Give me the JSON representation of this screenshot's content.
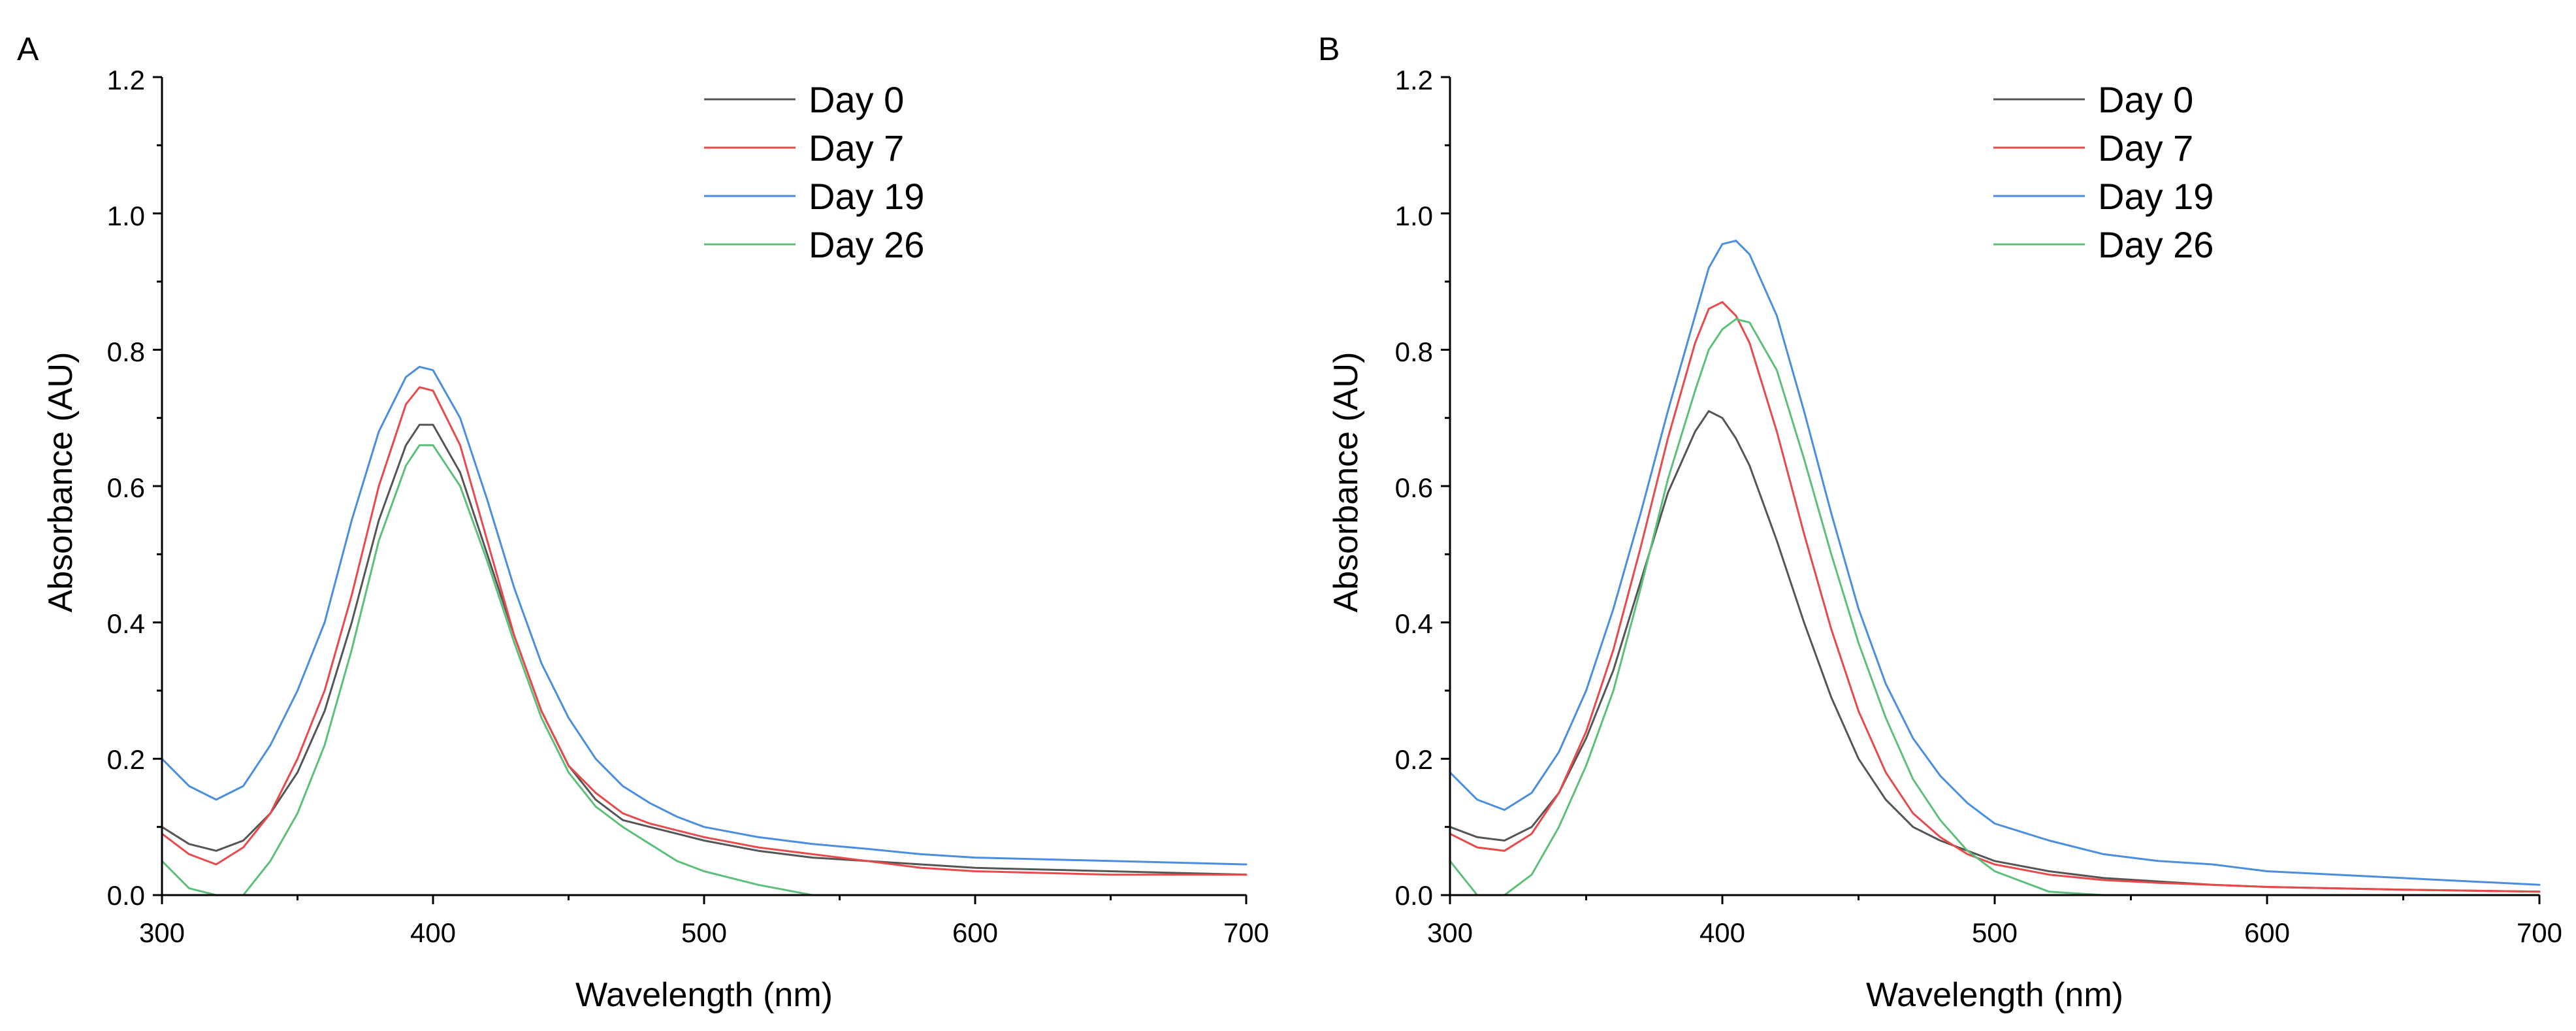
{
  "chart_data": [
    {
      "type": "line",
      "panel_label": "A",
      "xlabel": "Wavelength (nm)",
      "ylabel": "Absorbance (AU)",
      "xlim": [
        300,
        700
      ],
      "ylim": [
        0,
        1.2
      ],
      "xticks": [
        300,
        400,
        500,
        600,
        700
      ],
      "xtick_labels": [
        "300",
        "400",
        "500",
        "600",
        "700"
      ],
      "yticks": [
        0,
        0.2,
        0.4,
        0.6,
        0.8,
        1.0,
        1.2
      ],
      "ytick_labels": [
        "0.0",
        "0.2",
        "0.4",
        "0.6",
        "0.8",
        "1.0",
        "1.2"
      ],
      "grid": false,
      "legend_position": "top-right",
      "x": [
        300,
        310,
        320,
        330,
        340,
        350,
        360,
        370,
        380,
        390,
        395,
        400,
        410,
        420,
        430,
        440,
        450,
        460,
        470,
        480,
        490,
        500,
        520,
        540,
        560,
        580,
        600,
        650,
        700
      ],
      "series": [
        {
          "name": "Day 0",
          "color": "#555555",
          "values": [
            0.1,
            0.075,
            0.065,
            0.08,
            0.12,
            0.18,
            0.27,
            0.4,
            0.55,
            0.66,
            0.69,
            0.69,
            0.62,
            0.5,
            0.38,
            0.27,
            0.19,
            0.14,
            0.11,
            0.1,
            0.09,
            0.08,
            0.065,
            0.055,
            0.05,
            0.045,
            0.04,
            0.035,
            0.03
          ]
        },
        {
          "name": "Day 7",
          "color": "#e8494b",
          "values": [
            0.09,
            0.06,
            0.045,
            0.07,
            0.12,
            0.2,
            0.3,
            0.44,
            0.6,
            0.72,
            0.745,
            0.74,
            0.66,
            0.52,
            0.38,
            0.27,
            0.19,
            0.15,
            0.12,
            0.105,
            0.095,
            0.085,
            0.07,
            0.06,
            0.05,
            0.04,
            0.035,
            0.03,
            0.03
          ]
        },
        {
          "name": "Day 19",
          "color": "#4a8ee0",
          "values": [
            0.2,
            0.16,
            0.14,
            0.16,
            0.22,
            0.3,
            0.4,
            0.55,
            0.68,
            0.76,
            0.775,
            0.77,
            0.7,
            0.58,
            0.45,
            0.34,
            0.26,
            0.2,
            0.16,
            0.135,
            0.115,
            0.1,
            0.085,
            0.075,
            0.068,
            0.06,
            0.055,
            0.05,
            0.045
          ]
        },
        {
          "name": "Day 26",
          "color": "#5cbf7a",
          "values": [
            0.05,
            0.01,
            0.0,
            0.0,
            0.05,
            0.12,
            0.22,
            0.36,
            0.52,
            0.63,
            0.66,
            0.66,
            0.6,
            0.49,
            0.37,
            0.26,
            0.18,
            0.13,
            0.1,
            0.075,
            0.05,
            0.035,
            0.015,
            0.0,
            0.0,
            0.0,
            0.0,
            0.0,
            0.0
          ]
        }
      ]
    },
    {
      "type": "line",
      "panel_label": "B",
      "xlabel": "Wavelength (nm)",
      "ylabel": "Absorbance (AU)",
      "xlim": [
        300,
        700
      ],
      "ylim": [
        0,
        1.2
      ],
      "xticks": [
        300,
        400,
        500,
        600,
        700
      ],
      "xtick_labels": [
        "300",
        "400",
        "500",
        "600",
        "700"
      ],
      "yticks": [
        0,
        0.2,
        0.4,
        0.6,
        0.8,
        1.0,
        1.2
      ],
      "ytick_labels": [
        "0.0",
        "0.2",
        "0.4",
        "0.6",
        "0.8",
        "1.0",
        "1.2"
      ],
      "grid": false,
      "legend_position": "top-right",
      "x": [
        300,
        310,
        320,
        330,
        340,
        350,
        360,
        370,
        380,
        390,
        395,
        400,
        405,
        410,
        420,
        430,
        440,
        450,
        460,
        470,
        480,
        490,
        500,
        520,
        540,
        560,
        580,
        600,
        650,
        700
      ],
      "series": [
        {
          "name": "Day 0",
          "color": "#555555",
          "values": [
            0.1,
            0.085,
            0.08,
            0.1,
            0.15,
            0.23,
            0.33,
            0.46,
            0.59,
            0.68,
            0.71,
            0.7,
            0.67,
            0.63,
            0.52,
            0.4,
            0.29,
            0.2,
            0.14,
            0.1,
            0.08,
            0.065,
            0.05,
            0.035,
            0.025,
            0.02,
            0.015,
            0.012,
            0.008,
            0.005
          ]
        },
        {
          "name": "Day 7",
          "color": "#e8494b",
          "values": [
            0.09,
            0.07,
            0.065,
            0.09,
            0.15,
            0.24,
            0.36,
            0.51,
            0.67,
            0.81,
            0.86,
            0.87,
            0.85,
            0.81,
            0.68,
            0.53,
            0.39,
            0.27,
            0.18,
            0.12,
            0.085,
            0.06,
            0.045,
            0.03,
            0.022,
            0.018,
            0.015,
            0.012,
            0.008,
            0.005
          ]
        },
        {
          "name": "Day 19",
          "color": "#4a8ee0",
          "values": [
            0.18,
            0.14,
            0.125,
            0.15,
            0.21,
            0.3,
            0.42,
            0.56,
            0.71,
            0.85,
            0.92,
            0.955,
            0.96,
            0.94,
            0.85,
            0.71,
            0.56,
            0.42,
            0.31,
            0.23,
            0.175,
            0.135,
            0.105,
            0.08,
            0.06,
            0.05,
            0.045,
            0.035,
            0.025,
            0.015
          ]
        },
        {
          "name": "Day 26",
          "color": "#5cbf7a",
          "values": [
            0.05,
            0.0,
            0.0,
            0.03,
            0.1,
            0.19,
            0.3,
            0.45,
            0.61,
            0.74,
            0.8,
            0.83,
            0.845,
            0.84,
            0.77,
            0.64,
            0.5,
            0.37,
            0.26,
            0.17,
            0.11,
            0.065,
            0.035,
            0.005,
            0.0,
            0.0,
            0.0,
            0.0,
            0.0,
            0.0
          ]
        }
      ]
    }
  ]
}
